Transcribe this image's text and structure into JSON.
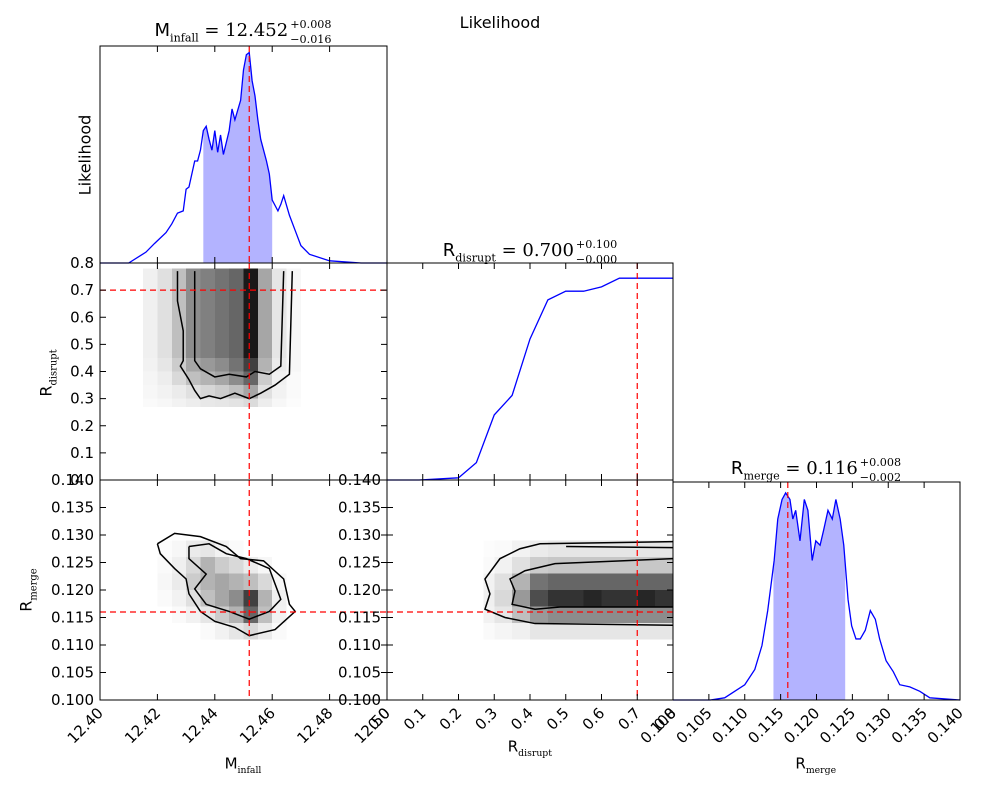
{
  "title": "Likelihood",
  "chart_data": [
    {
      "type": "line",
      "title": {
        "symbol": "M",
        "subscript": "infall",
        "value": " = 12.452",
        "upper": "+0.008",
        "lower": "−0.016"
      },
      "ylabel": "Likelihood",
      "xlim": [
        12.4,
        12.5
      ],
      "xticks": [
        12.4,
        12.42,
        12.44,
        12.46,
        12.48,
        12.5
      ],
      "ylim": [
        0,
        1
      ],
      "x": [
        12.4,
        12.41,
        12.416,
        12.419,
        12.423,
        12.425,
        12.427,
        12.429,
        12.43,
        12.431,
        12.433,
        12.434,
        12.435,
        12.436,
        12.437,
        12.438,
        12.439,
        12.44,
        12.441,
        12.442,
        12.443,
        12.445,
        12.446,
        12.447,
        12.449,
        12.45,
        12.451,
        12.452,
        12.453,
        12.454,
        12.455,
        12.456,
        12.458,
        12.459,
        12.46,
        12.462,
        12.463,
        12.464,
        12.466,
        12.468,
        12.47,
        12.473,
        12.48,
        12.491,
        12.5
      ],
      "values": [
        0,
        0,
        0.05,
        0.09,
        0.14,
        0.18,
        0.23,
        0.24,
        0.34,
        0.35,
        0.47,
        0.47,
        0.52,
        0.61,
        0.63,
        0.57,
        0.52,
        0.61,
        0.51,
        0.59,
        0.5,
        0.61,
        0.71,
        0.66,
        0.75,
        0.89,
        0.96,
        0.97,
        0.84,
        0.77,
        0.66,
        0.57,
        0.47,
        0.41,
        0.29,
        0.24,
        0.27,
        0.31,
        0.22,
        0.15,
        0.08,
        0.04,
        0.01,
        0,
        0
      ],
      "color": "#0000ff",
      "interval": [
        12.436,
        12.46
      ],
      "fill_color": "#b3b3ff",
      "best_fit": 12.452,
      "marker_color": "#ff0000"
    },
    {
      "type": "heatmap",
      "ylabel": {
        "symbol": "R",
        "subscript": "disrupt"
      },
      "xlim": [
        12.4,
        12.5
      ],
      "xticks": [
        12.4,
        12.42,
        12.44,
        12.46,
        12.48,
        12.5
      ],
      "ylim": [
        0,
        0.8
      ],
      "yticks": [
        {
          "value": 0,
          "label": "0.0"
        },
        0.1,
        0.2,
        0.3,
        0.4,
        0.5,
        0.6,
        0.7,
        0.8
      ],
      "x_edges": [
        12.415,
        12.42,
        12.425,
        12.43,
        12.435,
        12.44,
        12.445,
        12.45,
        12.455,
        12.46,
        12.465,
        12.47
      ],
      "y_edges": [
        0.27,
        0.3,
        0.35,
        0.4,
        0.45,
        0.78
      ],
      "z": [
        [
          0.02,
          0.03,
          0.05,
          0.07,
          0.09,
          0.1,
          0.11,
          0.14,
          0.07,
          0.03,
          0.01
        ],
        [
          0.03,
          0.05,
          0.08,
          0.12,
          0.16,
          0.2,
          0.25,
          0.35,
          0.12,
          0.05,
          0.02
        ],
        [
          0.04,
          0.07,
          0.15,
          0.25,
          0.3,
          0.35,
          0.45,
          0.6,
          0.2,
          0.06,
          0.02
        ],
        [
          0.05,
          0.1,
          0.2,
          0.35,
          0.4,
          0.45,
          0.55,
          0.75,
          0.3,
          0.08,
          0.03
        ],
        [
          0.06,
          0.12,
          0.25,
          0.45,
          0.5,
          0.55,
          0.6,
          0.9,
          0.35,
          0.1,
          0.03
        ]
      ],
      "contours": [
        {
          "x": [
            12.433,
            12.433,
            12.435,
            12.44,
            12.445,
            12.451,
            12.454,
            12.459,
            12.463,
            12.464
          ],
          "y": [
            0.77,
            0.44,
            0.41,
            0.38,
            0.39,
            0.38,
            0.4,
            0.39,
            0.42,
            0.77
          ]
        },
        {
          "x": [
            12.427,
            12.427,
            12.429,
            12.429,
            12.428,
            12.431,
            12.433,
            12.435,
            12.438,
            12.442,
            12.447,
            12.452,
            12.456,
            12.461,
            12.466,
            12.467
          ],
          "y": [
            0.77,
            0.66,
            0.55,
            0.44,
            0.42,
            0.37,
            0.33,
            0.3,
            0.31,
            0.3,
            0.32,
            0.3,
            0.32,
            0.35,
            0.39,
            0.77
          ]
        }
      ],
      "contour_color": "#000000",
      "best_fit": [
        12.452,
        0.7
      ],
      "marker_color": "#ff0000"
    },
    {
      "type": "line",
      "title": {
        "symbol": "R",
        "subscript": "disrupt",
        "value": " = 0.700",
        "upper": "+0.100",
        "lower": "−0.000"
      },
      "xlim": [
        0,
        0.8
      ],
      "xticks": [
        0,
        0.1,
        0.2,
        0.3,
        0.4,
        0.5,
        0.6,
        0.7,
        0.8
      ],
      "ylim": [
        0,
        1
      ],
      "x": [
        0,
        0.09,
        0.2,
        0.25,
        0.3,
        0.35,
        0.4,
        0.45,
        0.5,
        0.55,
        0.6,
        0.65,
        0.8
      ],
      "values": [
        0,
        0,
        0.01,
        0.08,
        0.3,
        0.39,
        0.65,
        0.83,
        0.87,
        0.87,
        0.89,
        0.93,
        0.93
      ],
      "color": "#0000ff",
      "best_fit": 0.7,
      "marker_color": "#ff0000"
    },
    {
      "type": "heatmap",
      "xlabel": {
        "symbol": "M",
        "subscript": "infall"
      },
      "ylabel": {
        "symbol": "R",
        "subscript": "merge"
      },
      "xlim": [
        12.4,
        12.5
      ],
      "xticks": [
        {
          "value": 12.4,
          "label": "12.40"
        },
        12.42,
        12.44,
        12.46,
        12.48,
        {
          "value": 12.5,
          "label": "12.50"
        }
      ],
      "ylim": [
        0.1,
        0.14
      ],
      "yticks": [
        {
          "value": 0.1,
          "label": "0.100"
        },
        {
          "value": 0.105,
          "label": "0.105"
        },
        {
          "value": 0.11,
          "label": "0.110"
        },
        {
          "value": 0.115,
          "label": "0.115"
        },
        {
          "value": 0.12,
          "label": "0.120"
        },
        {
          "value": 0.125,
          "label": "0.125"
        },
        {
          "value": 0.13,
          "label": "0.130"
        },
        {
          "value": 0.135,
          "label": "0.135"
        },
        {
          "value": 0.14,
          "label": "0.140"
        }
      ],
      "x_edges": [
        12.42,
        12.425,
        12.43,
        12.435,
        12.44,
        12.445,
        12.45,
        12.455,
        12.46,
        12.465
      ],
      "y_edges": [
        0.111,
        0.114,
        0.117,
        0.12,
        0.123,
        0.126,
        0.129
      ],
      "z": [
        [
          0,
          0,
          0,
          0.02,
          0.05,
          0.1,
          0.15,
          0.08,
          0.02
        ],
        [
          0,
          0.02,
          0.05,
          0.1,
          0.2,
          0.3,
          0.6,
          0.25,
          0.05
        ],
        [
          0.02,
          0.05,
          0.12,
          0.25,
          0.35,
          0.45,
          0.75,
          0.3,
          0.06
        ],
        [
          0.03,
          0.08,
          0.2,
          0.3,
          0.35,
          0.3,
          0.25,
          0.15,
          0.03
        ],
        [
          0.02,
          0.06,
          0.15,
          0.3,
          0.2,
          0.15,
          0.08,
          0.03,
          0
        ],
        [
          0.01,
          0.03,
          0.08,
          0.1,
          0.05,
          0.02,
          0,
          0,
          0
        ]
      ],
      "contours": [
        {
          "x": [
            12.431,
            12.438,
            12.444,
            12.451,
            12.459,
            12.461,
            12.463,
            12.459,
            12.452,
            12.445,
            12.437,
            12.433,
            12.437,
            12.431,
            12.431
          ],
          "y": [
            0.1279,
            0.1284,
            0.1266,
            0.1257,
            0.1239,
            0.1211,
            0.1183,
            0.1161,
            0.1147,
            0.1161,
            0.1174,
            0.1202,
            0.1229,
            0.1257,
            0.1279
          ]
        },
        {
          "x": [
            12.42,
            12.426,
            12.435,
            12.444,
            12.449,
            12.457,
            12.464,
            12.466,
            12.468,
            12.461,
            12.452,
            12.447,
            12.44,
            12.435,
            12.431,
            12.43,
            12.426,
            12.421,
            12.42
          ],
          "y": [
            0.1284,
            0.1303,
            0.1297,
            0.1279,
            0.1257,
            0.1253,
            0.122,
            0.1174,
            0.1161,
            0.1128,
            0.1117,
            0.1132,
            0.1143,
            0.1161,
            0.1193,
            0.122,
            0.1239,
            0.1266,
            0.1284
          ]
        }
      ],
      "contour_color": "#000000",
      "best_fit": [
        12.452,
        0.116
      ],
      "marker_color": "#ff0000"
    },
    {
      "type": "heatmap",
      "xlabel": {
        "symbol": "R",
        "subscript": "disrupt"
      },
      "xlim": [
        0,
        0.8
      ],
      "xticks": [
        {
          "value": 0,
          "label": "0.0"
        },
        0.1,
        0.2,
        0.3,
        0.4,
        0.5,
        0.6,
        0.7,
        0.8
      ],
      "ylim": [
        0.1,
        0.14
      ],
      "yticks": [
        {
          "value": 0.1,
          "label": "0.100"
        },
        {
          "value": 0.105,
          "label": "0.105"
        },
        {
          "value": 0.11,
          "label": "0.110"
        },
        {
          "value": 0.115,
          "label": "0.115"
        },
        {
          "value": 0.12,
          "label": "0.120"
        },
        {
          "value": 0.125,
          "label": "0.125"
        },
        {
          "value": 0.13,
          "label": "0.130"
        },
        {
          "value": 0.135,
          "label": "0.135"
        },
        {
          "value": 0.14,
          "label": "0.140"
        }
      ],
      "x_edges": [
        0.27,
        0.3,
        0.35,
        0.4,
        0.45,
        0.5,
        0.55,
        0.6,
        0.65,
        0.7,
        0.75,
        0.8
      ],
      "y_edges": [
        0.111,
        0.114,
        0.117,
        0.12,
        0.123,
        0.126,
        0.129
      ],
      "z": [
        [
          0.02,
          0.04,
          0.06,
          0.1,
          0.1,
          0.1,
          0.1,
          0.1,
          0.1,
          0.1,
          0.1
        ],
        [
          0.05,
          0.1,
          0.25,
          0.4,
          0.45,
          0.45,
          0.45,
          0.45,
          0.45,
          0.45,
          0.45
        ],
        [
          0.06,
          0.15,
          0.4,
          0.7,
          0.8,
          0.8,
          0.85,
          0.8,
          0.8,
          0.85,
          0.8
        ],
        [
          0.05,
          0.12,
          0.3,
          0.55,
          0.6,
          0.6,
          0.6,
          0.6,
          0.6,
          0.6,
          0.6
        ],
        [
          0.02,
          0.05,
          0.12,
          0.2,
          0.22,
          0.22,
          0.22,
          0.22,
          0.22,
          0.22,
          0.22
        ],
        [
          0.01,
          0.02,
          0.05,
          0.08,
          0.1,
          0.1,
          0.1,
          0.1,
          0.1,
          0.1,
          0.1
        ]
      ],
      "contours": [
        {
          "x": [
            0.8,
            0.428,
            0.372,
            0.316,
            0.274,
            0.288,
            0.274,
            0.33,
            0.414,
            0.8
          ],
          "y": [
            0.1288,
            0.1284,
            0.1275,
            0.1257,
            0.122,
            0.1193,
            0.1165,
            0.115,
            0.1139,
            0.1136
          ]
        },
        {
          "x": [
            0.8,
            0.47,
            0.386,
            0.344,
            0.358,
            0.35,
            0.414,
            0.484,
            0.8
          ],
          "y": [
            0.1257,
            0.1248,
            0.1235,
            0.122,
            0.1198,
            0.1174,
            0.1165,
            0.1169,
            0.1169
          ]
        },
        {
          "x": [
            0.501,
            0.8
          ],
          "y": [
            0.1279,
            0.1277
          ]
        }
      ],
      "contour_color": "#000000",
      "best_fit": [
        0.7,
        0.116
      ],
      "marker_color": "#ff0000"
    },
    {
      "type": "line",
      "title": {
        "symbol": "R",
        "subscript": "merge",
        "value": " = 0.116",
        "upper": "+0.008",
        "lower": "−0.002"
      },
      "xlabel": {
        "symbol": "R",
        "subscript": "merge"
      },
      "xlim": [
        0.1,
        0.14
      ],
      "xticks": [
        {
          "value": 0.1,
          "label": "0.100"
        },
        {
          "value": 0.105,
          "label": "0.105"
        },
        {
          "value": 0.11,
          "label": "0.110"
        },
        {
          "value": 0.115,
          "label": "0.115"
        },
        {
          "value": 0.12,
          "label": "0.120"
        },
        {
          "value": 0.125,
          "label": "0.125"
        },
        {
          "value": 0.13,
          "label": "0.130"
        },
        {
          "value": 0.135,
          "label": "0.135"
        },
        {
          "value": 0.14,
          "label": "0.140"
        }
      ],
      "ylim": [
        0,
        1
      ],
      "x": [
        0.1,
        0.1052,
        0.1072,
        0.1086,
        0.11,
        0.1114,
        0.1124,
        0.1132,
        0.1141,
        0.1146,
        0.1152,
        0.1157,
        0.1163,
        0.1167,
        0.1171,
        0.1177,
        0.1183,
        0.1188,
        0.1194,
        0.1199,
        0.1205,
        0.121,
        0.1216,
        0.1222,
        0.1227,
        0.1233,
        0.1238,
        0.1244,
        0.1249,
        0.1255,
        0.1261,
        0.1268,
        0.1275,
        0.1282,
        0.1288,
        0.1297,
        0.1307,
        0.1316,
        0.133,
        0.1344,
        0.1358,
        0.14
      ],
      "values": [
        0,
        0,
        0.01,
        0.04,
        0.07,
        0.14,
        0.25,
        0.41,
        0.64,
        0.83,
        0.92,
        0.95,
        0.92,
        0.83,
        0.87,
        0.73,
        0.92,
        0.87,
        0.64,
        0.73,
        0.71,
        0.78,
        0.87,
        0.83,
        0.92,
        0.83,
        0.71,
        0.46,
        0.34,
        0.28,
        0.28,
        0.32,
        0.41,
        0.37,
        0.28,
        0.18,
        0.13,
        0.07,
        0.06,
        0.04,
        0.01,
        0
      ],
      "color": "#0000ff",
      "interval": [
        0.114,
        0.124
      ],
      "fill_color": "#b3b3ff",
      "best_fit": 0.116,
      "marker_color": "#ff0000"
    }
  ]
}
